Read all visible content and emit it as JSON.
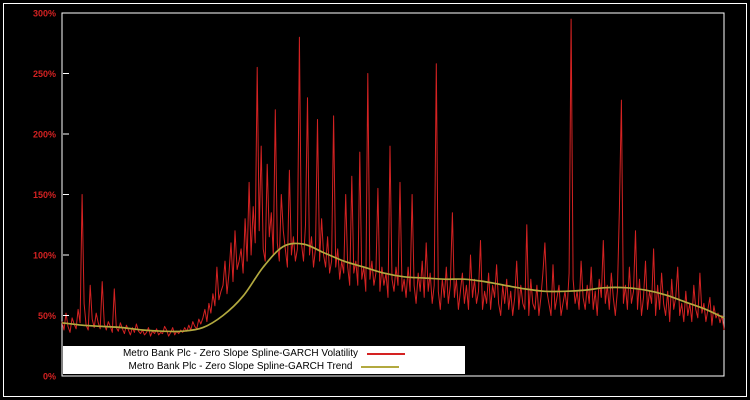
{
  "figure": {
    "background": "#000000",
    "border_color": "#ffffff"
  },
  "legend": {
    "items": [
      {
        "label": "Metro Bank Plc - Zero Slope Spline-GARCH Volatility",
        "color": "#d42222"
      },
      {
        "label": "Metro Bank Plc - Zero Slope Spline-GARCH Trend",
        "color": "#b2a93f"
      }
    ]
  },
  "chart_data": {
    "type": "line",
    "title": "",
    "xlabel": "",
    "ylabel": "",
    "unit": "percent",
    "ylim": [
      0,
      300
    ],
    "yticks": [
      0,
      50,
      100,
      150,
      200,
      250,
      300
    ],
    "ytick_labels": [
      "0%",
      "50%",
      "100%",
      "150%",
      "200%",
      "250%",
      "300%"
    ],
    "tick_label_color": "#d42222",
    "frame_color": "#ffffff",
    "grid": false,
    "legend_position": "bottom-left",
    "series": [
      {
        "key": "volatility",
        "name": "Metro Bank Plc - Zero Slope Spline-GARCH Volatility",
        "color": "#d42222",
        "stroke_width": 1,
        "smooth": false,
        "values": [
          45,
          38,
          52,
          41,
          36,
          48,
          43,
          39,
          55,
          44,
          150,
          60,
          42,
          38,
          75,
          47,
          40,
          52,
          44,
          39,
          78,
          43,
          38,
          45,
          41,
          36,
          72,
          40,
          37,
          44,
          39,
          35,
          42,
          38,
          34,
          40,
          36,
          43,
          37,
          35,
          38,
          34,
          36,
          40,
          33,
          37,
          35,
          39,
          34,
          36,
          35,
          41,
          38,
          33,
          36,
          40,
          34,
          37,
          35,
          38,
          36,
          40,
          37,
          42,
          38,
          45,
          41,
          39,
          47,
          43,
          48,
          55,
          45,
          60,
          52,
          68,
          58,
          90,
          63,
          70,
          75,
          95,
          68,
          85,
          110,
          78,
          120,
          88,
          95,
          105,
          85,
          130,
          95,
          160,
          100,
          140,
          110,
          255,
          120,
          190,
          105,
          95,
          175,
          115,
          135,
          100,
          220,
          110,
          95,
          150,
          120,
          105,
          90,
          170,
          100,
          115,
          95,
          105,
          280,
          110,
          95,
          125,
          230,
          100,
          115,
          90,
          105,
          212,
          95,
          130,
          100,
          90,
          115,
          85,
          95,
          215,
          90,
          105,
          80,
          95,
          85,
          150,
          90,
          75,
          165,
          85,
          95,
          75,
          185,
          80,
          90,
          70,
          250,
          80,
          95,
          75,
          85,
          155,
          70,
          90,
          75,
          85,
          65,
          190,
          80,
          70,
          90,
          75,
          160,
          70,
          80,
          65,
          90,
          70,
          150,
          75,
          60,
          85,
          70,
          95,
          65,
          110,
          70,
          85,
          60,
          75,
          258,
          70,
          55,
          80,
          65,
          90,
          60,
          75,
          135,
          65,
          80,
          55,
          70,
          85,
          60,
          75,
          55,
          100,
          65,
          80,
          60,
          70,
          112,
          55,
          70,
          60,
          85,
          55,
          75,
          65,
          92,
          60,
          50,
          75,
          60,
          80,
          55,
          70,
          50,
          65,
          95,
          55,
          75,
          60,
          55,
          125,
          50,
          80,
          60,
          55,
          75,
          50,
          65,
          85,
          110,
          70,
          60,
          50,
          92,
          55,
          65,
          75,
          50,
          60,
          70,
          55,
          85,
          295,
          80,
          60,
          70,
          55,
          95,
          65,
          55,
          75,
          60,
          90,
          55,
          70,
          50,
          80,
          65,
          112,
          60,
          75,
          55,
          85,
          65,
          50,
          70,
          138,
          228,
          60,
          75,
          55,
          90,
          60,
          70,
          120,
          55,
          80,
          50,
          65,
          95,
          55,
          70,
          60,
          105,
          50,
          75,
          55,
          85,
          60,
          50,
          70,
          45,
          80,
          55,
          65,
          90,
          50,
          60,
          45,
          70,
          50,
          60,
          45,
          75,
          55,
          48,
          85,
          52,
          60,
          45,
          55,
          65,
          42,
          58,
          48,
          52,
          44,
          50,
          38
        ]
      },
      {
        "key": "trend",
        "name": "Metro Bank Plc - Zero Slope Spline-GARCH Trend",
        "color": "#b2a93f",
        "stroke_width": 1.7,
        "smooth": true,
        "x_step": 10,
        "values": [
          44,
          42,
          41,
          40,
          38,
          37,
          37,
          40,
          50,
          66,
          90,
          107,
          109,
          102,
          95,
          90,
          85,
          82,
          81,
          80,
          80,
          78,
          75,
          72,
          70,
          70,
          71,
          73,
          73,
          71,
          67,
          61,
          55,
          48
        ]
      }
    ]
  }
}
